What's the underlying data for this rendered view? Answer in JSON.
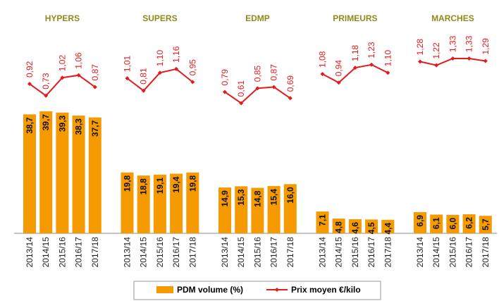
{
  "chart_data": {
    "type": "bar",
    "groups": [
      "HYPERS",
      "SUPERS",
      "EDMP",
      "PRIMEURS",
      "MARCHES"
    ],
    "categories": [
      "2013/14",
      "2014/15",
      "2015/16",
      "2016/17",
      "2017/18",
      "2013/14",
      "2014/15",
      "2015/16",
      "2016/17",
      "2017/18",
      "2013/14",
      "2014/15",
      "2015/16",
      "2016/17",
      "2017/18",
      "2013/14",
      "2014/15",
      "2015/16",
      "2016/17",
      "2017/18",
      "2013/14",
      "2014/15",
      "2015/16",
      "2016/17",
      "2017/18"
    ],
    "series": [
      {
        "name": "PDM volume (%)",
        "color": "#f59a00",
        "values": [
          38.7,
          39.7,
          39.3,
          38.3,
          37.7,
          19.8,
          18.8,
          19.1,
          19.4,
          19.8,
          14.9,
          15.3,
          14.8,
          15.4,
          16.0,
          7.1,
          4.8,
          4.6,
          4.5,
          4.4,
          6.9,
          6.1,
          6.0,
          6.2,
          5.7
        ],
        "value_labels": [
          "38,7",
          "39,7",
          "39,3",
          "38,3",
          "37,7",
          "19,8",
          "18,8",
          "19,1",
          "19,4",
          "19,8",
          "14,9",
          "15,3",
          "14,8",
          "15,4",
          "16,0",
          "7,1",
          "4,8",
          "4,6",
          "4,5",
          "4,4",
          "6,9",
          "6,1",
          "6,0",
          "6,2",
          "5,7"
        ]
      },
      {
        "name": "Prix moyen €/kilo",
        "color": "#e41a1c",
        "values": [
          0.92,
          0.73,
          1.02,
          1.06,
          0.87,
          1.01,
          0.81,
          1.1,
          1.16,
          0.95,
          0.79,
          0.61,
          0.85,
          0.87,
          0.69,
          1.08,
          0.94,
          1.18,
          1.23,
          1.1,
          1.28,
          1.22,
          1.33,
          1.33,
          1.29
        ],
        "value_labels": [
          "0,92",
          "0,73",
          "1,02",
          "1,06",
          "0,87",
          "1,01",
          "0,81",
          "1,10",
          "1,16",
          "0,95",
          "0,79",
          "0,61",
          "0,85",
          "0,87",
          "0,69",
          "1,08",
          "0,94",
          "1,18",
          "1,23",
          "1,10",
          "1,28",
          "1,22",
          "1,33",
          "1,33",
          "1,29"
        ]
      }
    ]
  }
}
